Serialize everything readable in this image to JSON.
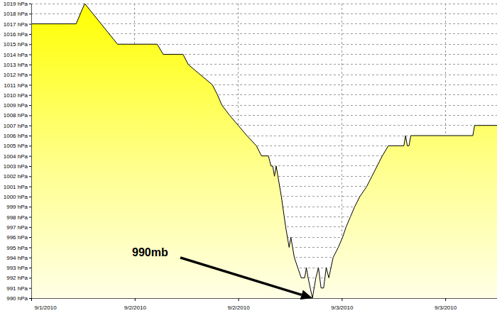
{
  "chart_data": {
    "type": "area",
    "color": "#ffff00",
    "grid": true,
    "x": [
      0,
      5.2,
      6.2,
      10.0,
      14.6,
      15.3,
      17.6,
      18.2,
      19.6,
      21.0,
      21.6,
      22.1,
      23.0,
      24.0,
      25.0,
      26.1,
      26.7,
      27.5,
      27.8,
      28.0,
      28.2,
      28.4,
      28.6,
      29.0,
      29.5,
      29.9,
      30.1,
      30.5,
      30.9,
      31.3,
      31.7,
      31.9,
      32.1,
      32.6,
      33.0,
      33.3,
      33.6,
      33.9,
      34.2,
      34.5,
      35.0,
      35.6,
      36.1,
      36.5,
      37.0,
      37.5,
      38.1,
      38.9,
      39.5,
      40.1,
      40.7,
      41.4,
      43.2,
      43.4,
      43.6,
      43.8,
      44.0,
      51.2,
      51.4,
      54
    ],
    "values": [
      1017,
      1017,
      1019,
      1015,
      1015,
      1014,
      1014,
      1013,
      1012,
      1011,
      1010,
      1009,
      1008,
      1007,
      1006,
      1005,
      1004,
      1004,
      1003,
      1003,
      1002,
      1003,
      1002,
      1000,
      997,
      995,
      996,
      994,
      993,
      992,
      992,
      993,
      992,
      990,
      992,
      993,
      991,
      991,
      993,
      992,
      994,
      995,
      996,
      997,
      998,
      999,
      1000,
      1001,
      1002,
      1003,
      1004,
      1005,
      1005,
      1006,
      1005,
      1005,
      1006,
      1006,
      1007,
      1007
    ],
    "xlim": [
      0,
      54
    ],
    "xticks": [
      {
        "value": 0,
        "label": "9/1/2010"
      },
      {
        "value": 12,
        "label": "9/2/2010"
      },
      {
        "value": 24,
        "label": "9/2/2010"
      },
      {
        "value": 36,
        "label": "9/3/2010"
      },
      {
        "value": 48,
        "label": "9/3/2010"
      }
    ],
    "ylim": [
      990,
      1019
    ],
    "yticks": [
      {
        "value": 990,
        "label": "990 hPa"
      },
      {
        "value": 991,
        "label": "991 hPa"
      },
      {
        "value": 992,
        "label": "992 hPa"
      },
      {
        "value": 993,
        "label": "993 hPa"
      },
      {
        "value": 994,
        "label": "994 hPa"
      },
      {
        "value": 995,
        "label": "995 hPa"
      },
      {
        "value": 996,
        "label": "996 hPa"
      },
      {
        "value": 997,
        "label": "997 hPa"
      },
      {
        "value": 998,
        "label": "998 hPa"
      },
      {
        "value": 999,
        "label": "999 hPa"
      },
      {
        "value": 1000,
        "label": "1000 hPa"
      },
      {
        "value": 1001,
        "label": "1001 hPa"
      },
      {
        "value": 1002,
        "label": "1002 hPa"
      },
      {
        "value": 1003,
        "label": "1003 hPa"
      },
      {
        "value": 1004,
        "label": "1004 hPa"
      },
      {
        "value": 1005,
        "label": "1005 hPa"
      },
      {
        "value": 1006,
        "label": "1006 hPa"
      },
      {
        "value": 1007,
        "label": "1007 hPa"
      },
      {
        "value": 1008,
        "label": "1008 hPa"
      },
      {
        "value": 1009,
        "label": "1009 hPa"
      },
      {
        "value": 1010,
        "label": "1010 hPa"
      },
      {
        "value": 1011,
        "label": "1011 hPa"
      },
      {
        "value": 1012,
        "label": "1012 hPa"
      },
      {
        "value": 1013,
        "label": "1013 hPa"
      },
      {
        "value": 1014,
        "label": "1014 hPa"
      },
      {
        "value": 1015,
        "label": "1015 hPa"
      },
      {
        "value": 1016,
        "label": "1016 hPa"
      },
      {
        "value": 1017,
        "label": "1017 hPa"
      },
      {
        "value": 1018,
        "label": "1018 hPa"
      },
      {
        "value": 1019,
        "label": "1019 hPa"
      }
    ],
    "annotations": [
      {
        "text": "990mb"
      }
    ]
  }
}
